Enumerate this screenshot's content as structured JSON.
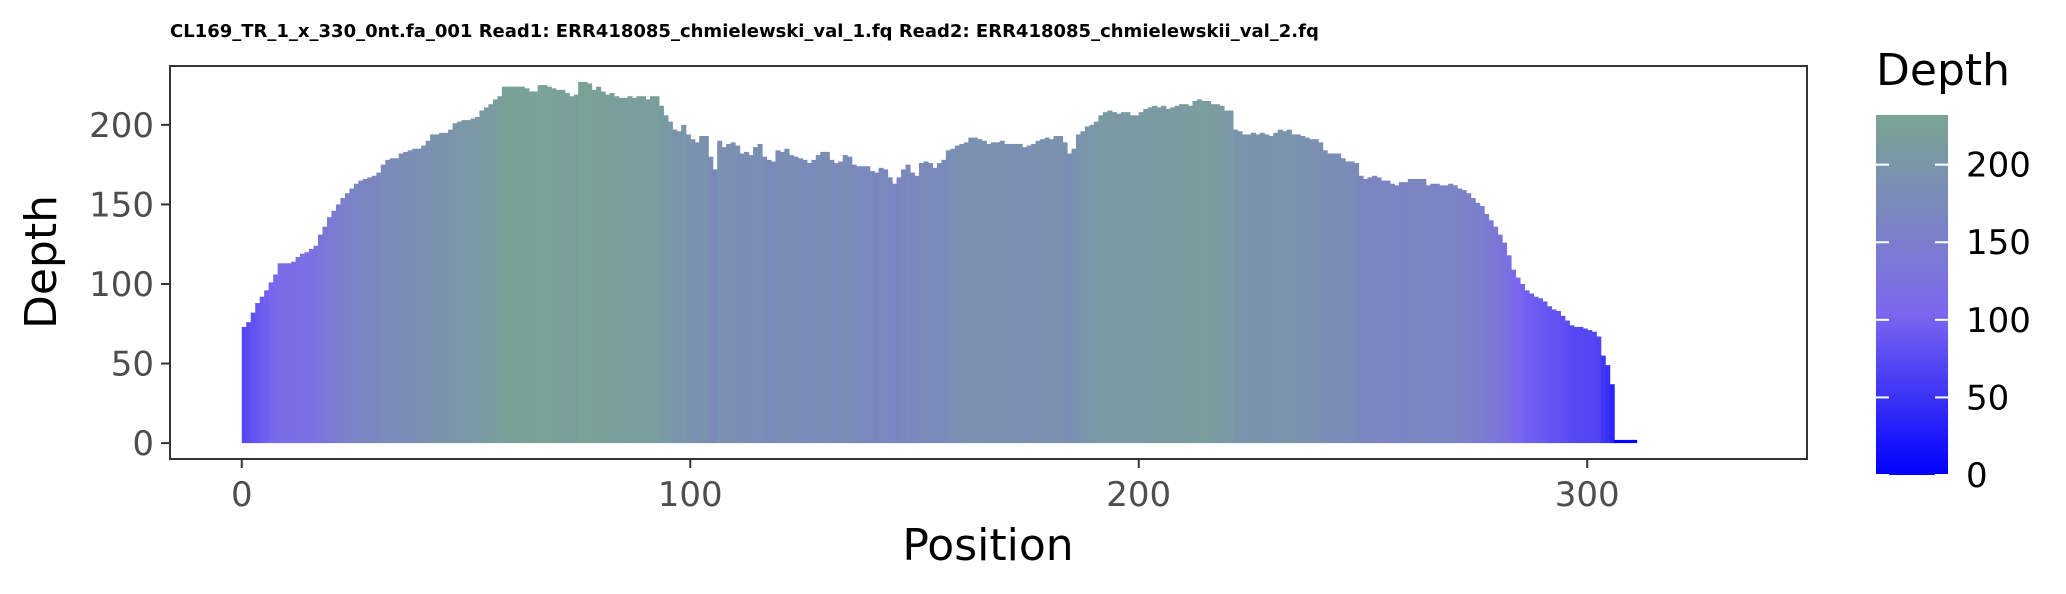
{
  "chart_data": {
    "type": "bar",
    "title": "CL169_TR_1_x_330_0nt.fa_001 Read1: ERR418085_chmielewski_val_1.fq Read2: ERR418085_chmielewskii_val_2.fq",
    "xlabel": "Position",
    "ylabel": "Depth",
    "xlim": [
      -16,
      349
    ],
    "ylim": [
      -10,
      237
    ],
    "xticks": [
      0,
      100,
      200,
      300
    ],
    "yticks": [
      0,
      50,
      100,
      150,
      200
    ],
    "grid": false,
    "x_start": 0,
    "legend": {
      "title": "Depth",
      "placement": "right",
      "ticks": [
        0,
        50,
        100,
        150,
        200
      ],
      "range": [
        0,
        232
      ],
      "low_color": "#0000ff",
      "mid_color": "#7b68ee",
      "high_color": "#7aa592"
    },
    "values": [
      73,
      76,
      82,
      88,
      92,
      96,
      101,
      106,
      113,
      113,
      113,
      114,
      117,
      119,
      120,
      122,
      124,
      131,
      136,
      142,
      146,
      150,
      154,
      157,
      160,
      163,
      165,
      166,
      167,
      168,
      170,
      175,
      178,
      179,
      179,
      182,
      183,
      184,
      185,
      185,
      187,
      190,
      194,
      194,
      195,
      195,
      197,
      201,
      202,
      203,
      203,
      204,
      205,
      209,
      211,
      213,
      216,
      218,
      224,
      224,
      224,
      224,
      224,
      223,
      221,
      221,
      225,
      225,
      224,
      223,
      222,
      222,
      220,
      218,
      219,
      227,
      227,
      226,
      222,
      224,
      221,
      219,
      220,
      218,
      217,
      217,
      218,
      217,
      218,
      218,
      216,
      218,
      218,
      212,
      206,
      202,
      197,
      196,
      200,
      194,
      191,
      189,
      193,
      193,
      180,
      172,
      190,
      186,
      188,
      189,
      187,
      182,
      183,
      181,
      186,
      188,
      180,
      178,
      177,
      184,
      183,
      185,
      181,
      180,
      179,
      178,
      176,
      178,
      181,
      183,
      183,
      178,
      176,
      177,
      181,
      180,
      175,
      174,
      174,
      174,
      171,
      170,
      173,
      172,
      167,
      163,
      167,
      172,
      175,
      170,
      168,
      176,
      177,
      176,
      173,
      176,
      178,
      184,
      185,
      187,
      188,
      189,
      192,
      192,
      191,
      190,
      188,
      189,
      189,
      190,
      188,
      188,
      188,
      188,
      186,
      187,
      188,
      190,
      191,
      192,
      191,
      193,
      193,
      189,
      182,
      185,
      194,
      196,
      199,
      200,
      202,
      206,
      208,
      209,
      208,
      207,
      208,
      208,
      206,
      206,
      208,
      210,
      211,
      212,
      211,
      212,
      210,
      211,
      212,
      213,
      213,
      212,
      215,
      216,
      215,
      215,
      213,
      213,
      212,
      209,
      209,
      197,
      196,
      194,
      194,
      195,
      194,
      195,
      194,
      193,
      195,
      197,
      196,
      197,
      194,
      194,
      193,
      192,
      191,
      191,
      189,
      184,
      182,
      182,
      182,
      179,
      177,
      177,
      176,
      168,
      166,
      167,
      168,
      167,
      165,
      165,
      163,
      162,
      164,
      164,
      166,
      166,
      166,
      166,
      162,
      163,
      163,
      162,
      162,
      163,
      162,
      160,
      159,
      157,
      154,
      151,
      149,
      144,
      140,
      136,
      131,
      126,
      118,
      109,
      104,
      100,
      96,
      94,
      92,
      91,
      89,
      86,
      84,
      83,
      80,
      77,
      74,
      73,
      73,
      72,
      71,
      70,
      67,
      55,
      49,
      37,
      2,
      2,
      2,
      2,
      2
    ]
  }
}
